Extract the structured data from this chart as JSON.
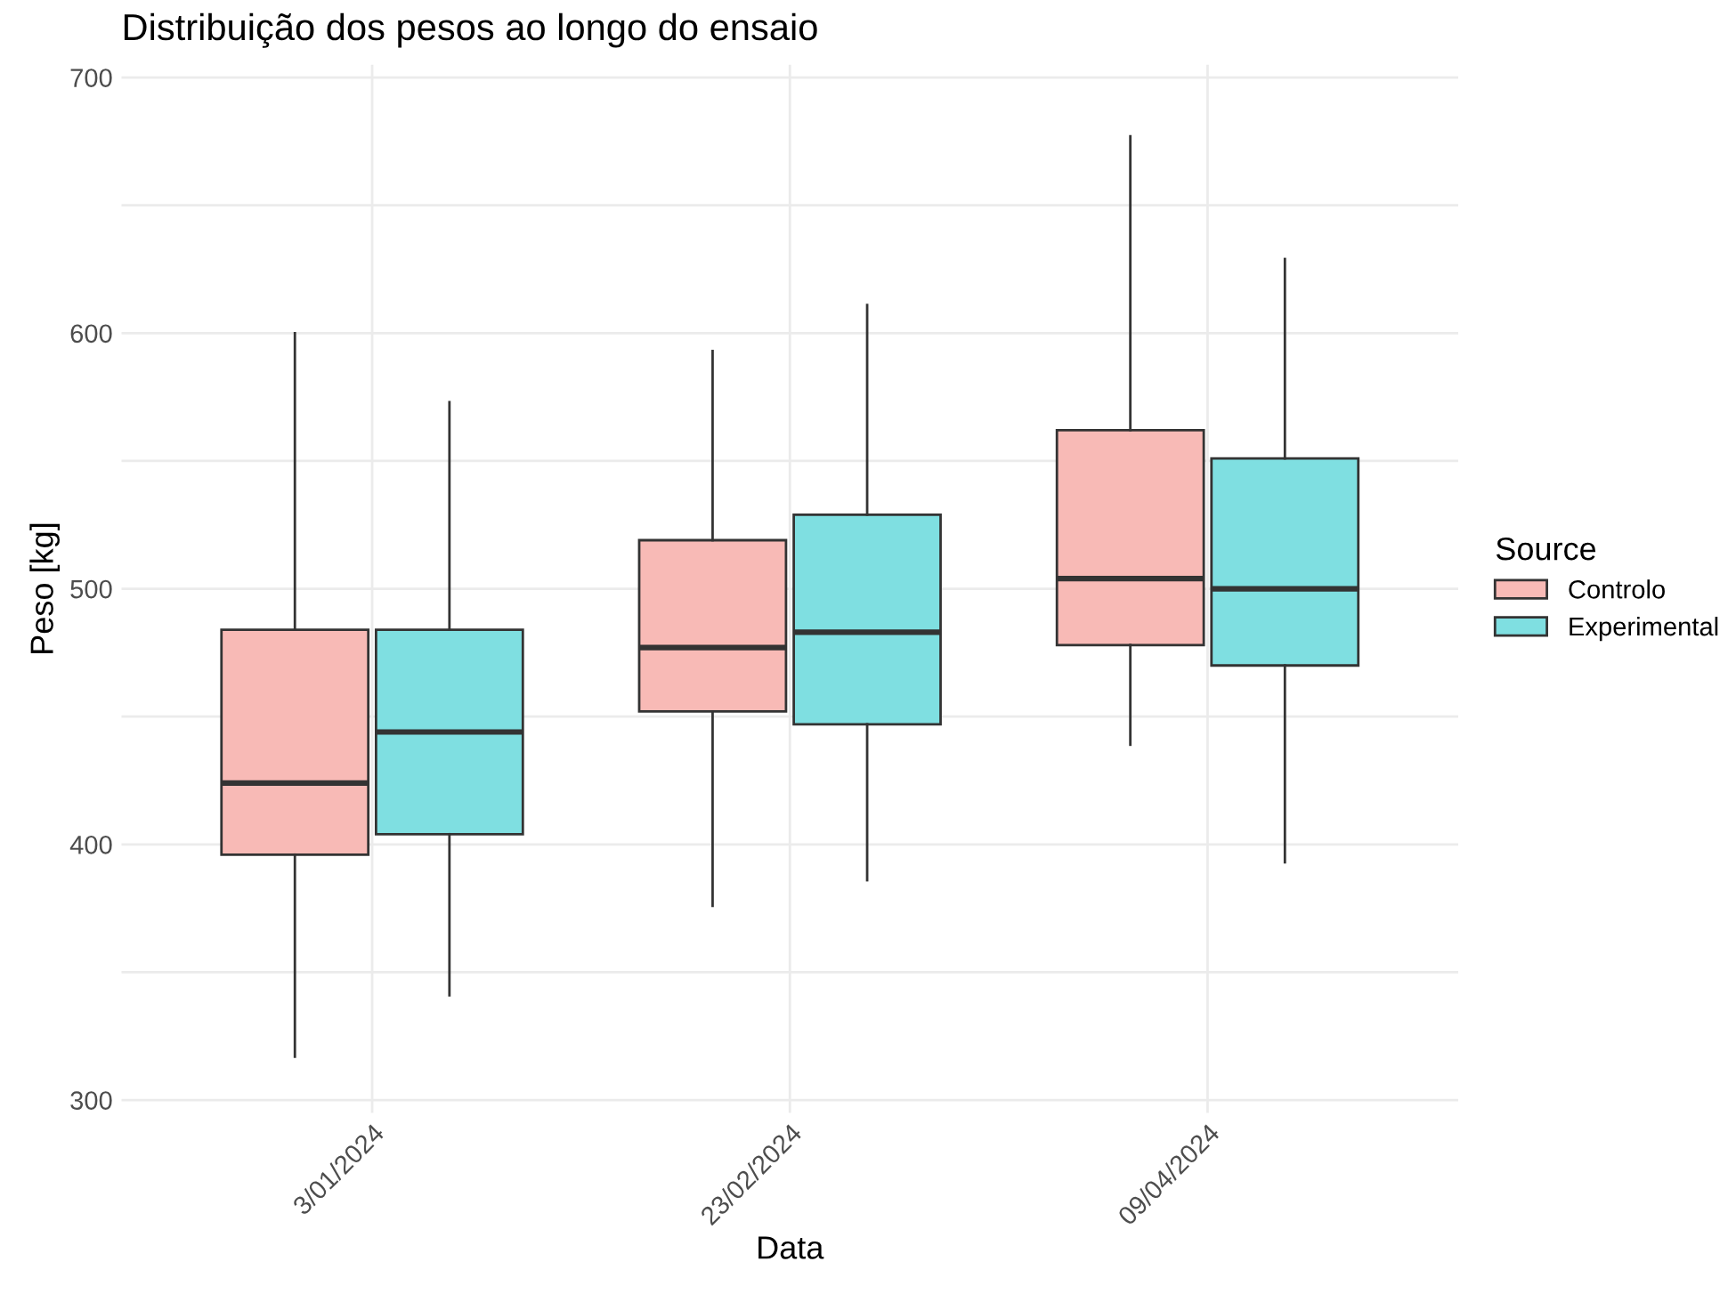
{
  "chart_data": {
    "type": "box",
    "title": "Distribuição dos pesos ao longo do ensaio",
    "xlabel": "Data",
    "ylabel": "Peso [kg]",
    "legend_title": "Source",
    "categories": [
      "3/01/2024",
      "23/02/2024",
      "09/04/2024"
    ],
    "series": [
      {
        "name": "Controlo",
        "color": "#f8bab6",
        "boxes": [
          {
            "low": 317,
            "q1": 396,
            "median": 424,
            "q3": 484,
            "high": 600
          },
          {
            "low": 376,
            "q1": 452,
            "median": 477,
            "q3": 519,
            "high": 593
          },
          {
            "low": 439,
            "q1": 478,
            "median": 504,
            "q3": 562,
            "high": 677
          }
        ]
      },
      {
        "name": "Experimental",
        "color": "#7fdfe1",
        "boxes": [
          {
            "low": 341,
            "q1": 404,
            "median": 444,
            "q3": 484,
            "high": 573
          },
          {
            "low": 386,
            "q1": 447,
            "median": 483,
            "q3": 529,
            "high": 611
          },
          {
            "low": 393,
            "q1": 470,
            "median": 500,
            "q3": 551,
            "high": 629
          }
        ]
      }
    ],
    "ylim": [
      295,
      705
    ],
    "yticks": [
      300,
      {
        "value": 350,
        "label": null
      },
      400,
      {
        "value": 450,
        "label": null
      },
      500,
      {
        "value": 550,
        "label": null
      },
      600,
      {
        "value": 650,
        "label": null
      },
      700
    ],
    "grid": true,
    "legend": "right"
  }
}
